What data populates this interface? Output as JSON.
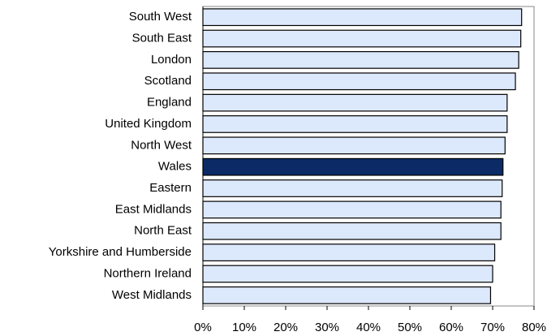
{
  "chart_data": {
    "type": "hbar",
    "categories": [
      "South West",
      "South East",
      "London",
      "Scotland",
      "England",
      "United Kingdom",
      "North West",
      "Wales",
      "Eastern",
      "East Midlands",
      "North East",
      "Yorkshire and Humberside",
      "Northern Ireland",
      "West Midlands"
    ],
    "values": [
      77,
      76.8,
      76.3,
      75.5,
      73.5,
      73.5,
      73,
      72.5,
      72.3,
      72,
      72,
      70.5,
      70,
      69.5
    ],
    "colors": [
      "#dce8fc",
      "#dce8fc",
      "#dce8fc",
      "#dce8fc",
      "#dce8fc",
      "#dce8fc",
      "#dce8fc",
      "#0b2a66",
      "#dce8fc",
      "#dce8fc",
      "#dce8fc",
      "#dce8fc",
      "#dce8fc",
      "#dce8fc"
    ],
    "xlim": [
      0,
      80
    ],
    "xticks": [
      {
        "value": 0,
        "label": "0%"
      },
      {
        "value": 10,
        "label": "10%"
      },
      {
        "value": 20,
        "label": "20%"
      },
      {
        "value": 30,
        "label": "30%"
      },
      {
        "value": 40,
        "label": "40%"
      },
      {
        "value": 50,
        "label": "50%"
      },
      {
        "value": 60,
        "label": "60%"
      },
      {
        "value": 70,
        "label": "70%"
      },
      {
        "value": 80,
        "label": "80%"
      }
    ]
  }
}
